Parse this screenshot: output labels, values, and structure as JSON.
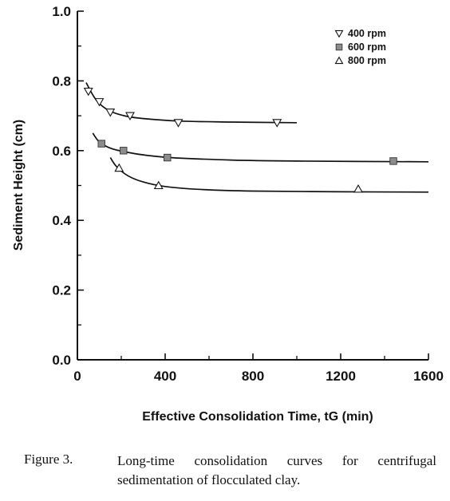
{
  "chart_data": {
    "type": "scatter",
    "xlabel": "Effective Consolidation Time, tG (min)",
    "ylabel": "Sediment Height (cm)",
    "xlim": [
      0,
      1600
    ],
    "ylim": [
      0,
      1.0
    ],
    "xticks": [
      "0",
      "400",
      "800",
      "1200",
      "1600"
    ],
    "yticks": [
      "0.0",
      "0.2",
      "0.4",
      "0.6",
      "0.8",
      "1.0"
    ],
    "grid": false,
    "legend": "top-right",
    "series": [
      {
        "name": "400 rpm",
        "marker": "triangle-down",
        "points": [
          [
            50,
            0.77
          ],
          [
            100,
            0.74
          ],
          [
            150,
            0.71
          ],
          [
            240,
            0.7
          ],
          [
            460,
            0.68
          ],
          [
            910,
            0.68
          ]
        ],
        "curve": [
          [
            40,
            0.795
          ],
          [
            70,
            0.76
          ],
          [
            100,
            0.735
          ],
          [
            150,
            0.713
          ],
          [
            220,
            0.699
          ],
          [
            300,
            0.692
          ],
          [
            460,
            0.685
          ],
          [
            700,
            0.682
          ],
          [
            1000,
            0.68
          ]
        ]
      },
      {
        "name": "600 rpm",
        "marker": "square",
        "points": [
          [
            110,
            0.62
          ],
          [
            210,
            0.6
          ],
          [
            410,
            0.58
          ],
          [
            1440,
            0.57
          ]
        ],
        "curve": [
          [
            70,
            0.65
          ],
          [
            100,
            0.625
          ],
          [
            150,
            0.607
          ],
          [
            220,
            0.596
          ],
          [
            320,
            0.586
          ],
          [
            450,
            0.579
          ],
          [
            700,
            0.573
          ],
          [
            1000,
            0.57
          ],
          [
            1600,
            0.568
          ]
        ]
      },
      {
        "name": "800 rpm",
        "marker": "triangle-up",
        "points": [
          [
            190,
            0.55
          ],
          [
            370,
            0.5
          ],
          [
            1280,
            0.49
          ]
        ],
        "curve": [
          [
            150,
            0.58
          ],
          [
            180,
            0.553
          ],
          [
            230,
            0.528
          ],
          [
            300,
            0.51
          ],
          [
            400,
            0.497
          ],
          [
            550,
            0.489
          ],
          [
            800,
            0.484
          ],
          [
            1200,
            0.482
          ],
          [
            1600,
            0.481
          ]
        ]
      }
    ]
  },
  "caption": {
    "label": "Figure 3.",
    "text": "Long-time consolidation curves for centrifugal sedimentation of flocculated clay."
  }
}
